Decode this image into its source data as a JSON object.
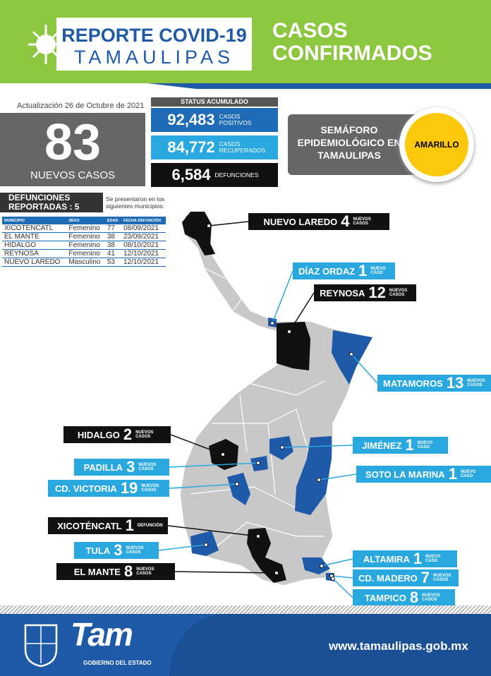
{
  "header": {
    "title": "REPORTE COVID-19",
    "subtitle": "TAMAULIPAS",
    "heading": [
      "CASOS",
      "CONFIRMADOS"
    ]
  },
  "update": "Actualización 26 de Octubre de 2021",
  "new_cases": {
    "value": "83",
    "label": "NUEVOS CASOS"
  },
  "status": {
    "title": "STATUS ACUMULADO",
    "items": [
      {
        "value": "92,483",
        "label": "CASOS POSITIVOS"
      },
      {
        "value": "84,772",
        "label": "CASOS RECUPERADOS"
      },
      {
        "value": "6,584",
        "label": "DEFUNCIONES"
      }
    ]
  },
  "semaforo": {
    "label": "SEMÁFORO EPIDEMIOLÓGICO EN TAMAULIPAS",
    "status": "AMARILLO"
  },
  "deaths": {
    "title": "DEFUNCIONES REPORTADAS : 5",
    "note": "Se presentaron en los siguientes municipios:",
    "columns": [
      "MUNICIPIO",
      "SEXO",
      "EDAD",
      "FECHA DEFUNCIÓN"
    ],
    "rows": [
      [
        "XICOTÉNCATL",
        "Femenino",
        "77",
        "08/09/2021"
      ],
      [
        "EL MANTE",
        "Femenino",
        "38",
        "23/09/2021"
      ],
      [
        "HIDALGO",
        "Femenino",
        "38",
        "08/10/2021"
      ],
      [
        "REYNOSA",
        "Femenino",
        "41",
        "12/10/2021"
      ],
      [
        "NUEVO LAREDO",
        "Masculino",
        "53",
        "12/10/2021"
      ]
    ]
  },
  "callouts": [
    {
      "name": "NUEVO LAREDO",
      "count": "4",
      "unit": "NUEVOS CASOS"
    },
    {
      "name": "DÍAZ ORDAZ",
      "count": "1",
      "unit": "NUEVO CASO"
    },
    {
      "name": "REYNOSA",
      "count": "12",
      "unit": "NUEVOS CASOS"
    },
    {
      "name": "MATAMOROS",
      "count": "13",
      "unit": "NUEVOS CASOS"
    },
    {
      "name": "HIDALGO",
      "count": "2",
      "unit": "NUEVOS CASOS"
    },
    {
      "name": "JIMÉNEZ",
      "count": "1",
      "unit": "NUEVO CASO"
    },
    {
      "name": "PADILLA",
      "count": "3",
      "unit": "NUEVOS CASOS"
    },
    {
      "name": "SOTO LA MARINA",
      "count": "1",
      "unit": "NUEVO CASO"
    },
    {
      "name": "CD. VICTORIA",
      "count": "19",
      "unit": "NUEVOS CASOS"
    },
    {
      "name": "XICOTÉNCATL",
      "count": "1",
      "unit": "DEFUNCIÓN"
    },
    {
      "name": "TULA",
      "count": "3",
      "unit": "NUEVOS CASOS"
    },
    {
      "name": "EL MANTE",
      "count": "8",
      "unit": "NUEVOS CASOS"
    },
    {
      "name": "ALTAMIRA",
      "count": "1",
      "unit": "NUEVO CASO"
    },
    {
      "name": "CD. MADERO",
      "count": "7",
      "unit": "NUEVOS CASOS"
    },
    {
      "name": "TAMPICO",
      "count": "8",
      "unit": "NUEVOS CASOS"
    }
  ],
  "footer": {
    "logo": "Tam",
    "logo_caption": "GOBIERNO DEL ESTADO",
    "url": "www.tamaulipas.gob.mx"
  }
}
